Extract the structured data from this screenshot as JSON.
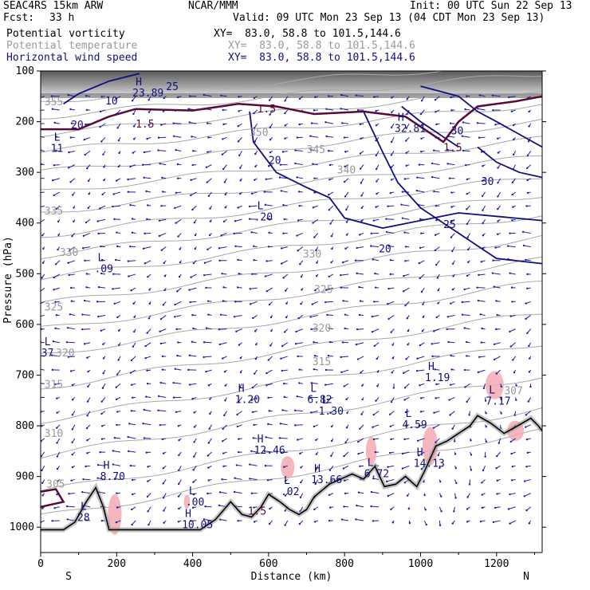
{
  "header": {
    "model": "SEAC4RS 15km ARW",
    "org": "NCAR/MMM",
    "init": "Init: 00 UTC Sun 22 Sep 13",
    "fcst_label": "Fcst:",
    "fcst_value": "33 h",
    "valid": "Valid: 09 UTC Mon 23 Sep 13 (04 CDT Mon 23 Sep 13)",
    "fields": [
      {
        "name": "Potential vorticity",
        "xy": "XY=  83.0, 58.8 to 101.5,144.6",
        "color": "#000000"
      },
      {
        "name": "Potential temperature",
        "xy": "XY=  83.0, 58.8 to 101.5,144.6",
        "color": "#9a9a9a"
      },
      {
        "name": "Horizontal wind speed",
        "xy": "XY=  83.0, 58.8 to 101.5,144.6",
        "color": "#10107a"
      }
    ]
  },
  "chart_data": {
    "type": "cross-section",
    "xlabel": "Distance (km)",
    "ylabel": "Pressure (hPa)",
    "xlim": [
      0,
      1320
    ],
    "ylim": [
      1050,
      100
    ],
    "x_ticks": [
      0,
      200,
      400,
      600,
      800,
      1000,
      1200
    ],
    "y_ticks": [
      100,
      200,
      300,
      400,
      500,
      600,
      700,
      800,
      900,
      1000
    ],
    "x_end_labels": {
      "left": "S",
      "right": "N"
    },
    "terrain": [
      [
        0,
        1005
      ],
      [
        60,
        1005
      ],
      [
        90,
        990
      ],
      [
        120,
        950
      ],
      [
        145,
        922
      ],
      [
        165,
        960
      ],
      [
        180,
        1005
      ],
      [
        320,
        1005
      ],
      [
        420,
        1005
      ],
      [
        460,
        985
      ],
      [
        500,
        950
      ],
      [
        530,
        975
      ],
      [
        555,
        980
      ],
      [
        580,
        960
      ],
      [
        600,
        935
      ],
      [
        630,
        950
      ],
      [
        655,
        965
      ],
      [
        680,
        975
      ],
      [
        700,
        965
      ],
      [
        720,
        940
      ],
      [
        760,
        915
      ],
      [
        790,
        905
      ],
      [
        820,
        895
      ],
      [
        850,
        905
      ],
      [
        880,
        880
      ],
      [
        905,
        920
      ],
      [
        935,
        915
      ],
      [
        960,
        900
      ],
      [
        990,
        920
      ],
      [
        1010,
        890
      ],
      [
        1040,
        840
      ],
      [
        1070,
        830
      ],
      [
        1100,
        815
      ],
      [
        1130,
        800
      ],
      [
        1150,
        780
      ],
      [
        1185,
        795
      ],
      [
        1220,
        815
      ],
      [
        1260,
        798
      ],
      [
        1290,
        785
      ],
      [
        1310,
        800
      ],
      [
        1320,
        810
      ]
    ],
    "theta_labels": [
      {
        "text": "355",
        "x": 10,
        "y": 168
      },
      {
        "text": "335",
        "x": 10,
        "y": 383
      },
      {
        "text": "330",
        "x": 50,
        "y": 465
      },
      {
        "text": "325",
        "x": 10,
        "y": 573
      },
      {
        "text": "320",
        "x": 40,
        "y": 663
      },
      {
        "text": "315",
        "x": 10,
        "y": 725
      },
      {
        "text": "310",
        "x": 10,
        "y": 822
      },
      {
        "text": "305",
        "x": 15,
        "y": 922
      },
      {
        "text": "350",
        "x": 550,
        "y": 228
      },
      {
        "text": "345",
        "x": 700,
        "y": 262
      },
      {
        "text": "340",
        "x": 780,
        "y": 302
      },
      {
        "text": "330",
        "x": 690,
        "y": 468
      },
      {
        "text": "325",
        "x": 720,
        "y": 538
      },
      {
        "text": "320",
        "x": 715,
        "y": 614
      },
      {
        "text": "315",
        "x": 715,
        "y": 680
      },
      {
        "text": "307",
        "x": 1220,
        "y": 738
      }
    ],
    "wind_labels": [
      {
        "text": "10",
        "x": 170,
        "y": 166
      },
      {
        "text": "20",
        "x": 80,
        "y": 213
      },
      {
        "text": "20",
        "x": 600,
        "y": 283
      },
      {
        "text": "30",
        "x": 1080,
        "y": 225
      },
      {
        "text": "30",
        "x": 1160,
        "y": 325
      },
      {
        "text": "25",
        "x": 1060,
        "y": 410
      },
      {
        "text": "20",
        "x": 890,
        "y": 458
      },
      {
        "text": "25",
        "x": 330,
        "y": 138
      }
    ],
    "pv_labels": [
      {
        "text": "1.5",
        "x": 570,
        "y": 182
      },
      {
        "text": "1.5",
        "x": 250,
        "y": 212
      },
      {
        "text": "1.5",
        "x": 1060,
        "y": 258
      },
      {
        "text": "1.5",
        "x": 545,
        "y": 975
      }
    ],
    "extrema": [
      {
        "kind": "H",
        "value": "23.89",
        "x": 250,
        "y": 150
      },
      {
        "kind": "L",
        "value": "11",
        "x": 35,
        "y": 260
      },
      {
        "kind": "L",
        "value": ".20",
        "x": 570,
        "y": 395
      },
      {
        "kind": "L",
        "value": ".09",
        "x": 150,
        "y": 497
      },
      {
        "kind": "L",
        "value": "37",
        "x": 10,
        "y": 663
      },
      {
        "kind": "H",
        "value": "1.20",
        "x": 520,
        "y": 755
      },
      {
        "kind": "L",
        "value": "6.82",
        "x": 710,
        "y": 755
      },
      {
        "kind": "L",
        "value": "1.30",
        "x": 740,
        "y": 778
      },
      {
        "kind": "H",
        "value": "1.19",
        "x": 1020,
        "y": 712
      },
      {
        "kind": "L",
        "value": "4.59",
        "x": 960,
        "y": 805
      },
      {
        "kind": "L",
        "value": "7.17",
        "x": 1180,
        "y": 758
      },
      {
        "kind": "H",
        "value": "12.46",
        "x": 570,
        "y": 855
      },
      {
        "kind": "H",
        "value": "8.70",
        "x": 165,
        "y": 907
      },
      {
        "kind": "H",
        "value": "14.13",
        "x": 990,
        "y": 881
      },
      {
        "kind": "H",
        "value": "13.66",
        "x": 720,
        "y": 913
      },
      {
        "kind": "L",
        "value": "6.72",
        "x": 860,
        "y": 901
      },
      {
        "kind": "L",
        "value": ".02",
        "x": 640,
        "y": 937
      },
      {
        "kind": "L",
        "value": ".00",
        "x": 390,
        "y": 957
      },
      {
        "kind": "H",
        "value": "10.05",
        "x": 380,
        "y": 1002
      },
      {
        "kind": "L",
        "value": "28",
        "x": 105,
        "y": 988
      },
      {
        "kind": "H",
        "value": "32.81",
        "x": 940,
        "y": 220
      }
    ],
    "high_pv_patches": [
      {
        "x": 195,
        "y": 975,
        "rx": 18,
        "ry": 40
      },
      {
        "x": 385,
        "y": 950,
        "rx": 8,
        "ry": 14
      },
      {
        "x": 650,
        "y": 882,
        "rx": 18,
        "ry": 22
      },
      {
        "x": 870,
        "y": 850,
        "rx": 14,
        "ry": 28
      },
      {
        "x": 1025,
        "y": 840,
        "rx": 20,
        "ry": 38
      },
      {
        "x": 1195,
        "y": 720,
        "rx": 24,
        "ry": 28
      },
      {
        "x": 1250,
        "y": 810,
        "rx": 22,
        "ry": 20
      }
    ],
    "grid": false
  }
}
